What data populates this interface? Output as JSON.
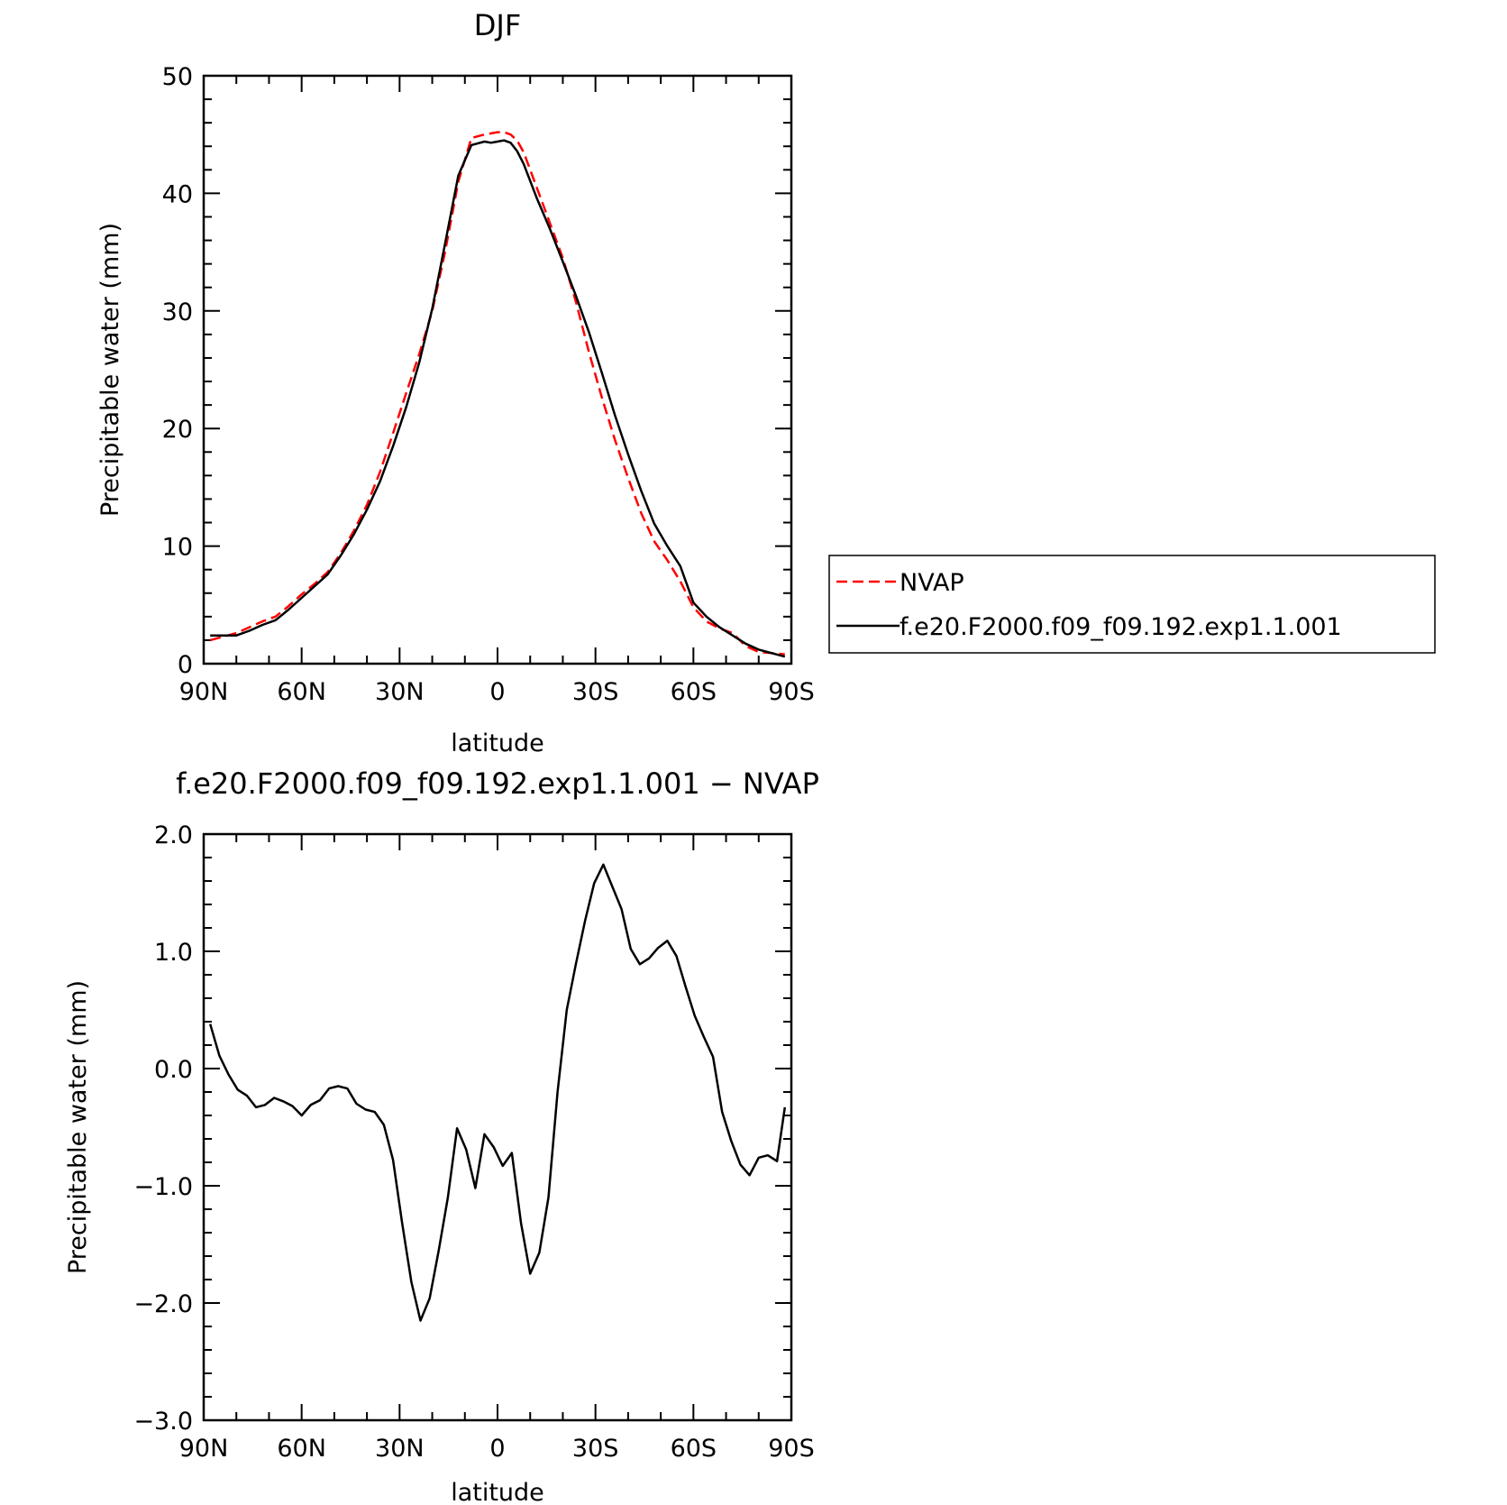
{
  "chart_data": [
    {
      "type": "line",
      "title": "DJF",
      "xlabel": "latitude",
      "ylabel": "Precipitable water (mm)",
      "xlim": [
        90,
        -90
      ],
      "ylim": [
        0,
        50
      ],
      "x_tick_values": [
        90,
        60,
        30,
        0,
        -30,
        -60,
        -90
      ],
      "x_tick_labels": [
        "90N",
        "60N",
        "30N",
        "0",
        "30S",
        "60S",
        "90S"
      ],
      "y_tick_values": [
        0,
        10,
        20,
        30,
        40,
        50
      ],
      "y_tick_labels": [
        "0",
        "10",
        "20",
        "30",
        "40",
        "50"
      ],
      "grid": false,
      "legend_position": "right",
      "x": [
        88,
        84,
        80,
        76,
        72,
        68,
        64,
        60,
        56,
        52,
        48,
        44,
        40,
        36,
        32,
        28,
        24,
        20,
        16,
        12,
        8,
        4,
        2,
        0,
        -2,
        -4,
        -6,
        -8,
        -12,
        -16,
        -20,
        -24,
        -28,
        -32,
        -36,
        -40,
        -44,
        -48,
        -52,
        -56,
        -60,
        -64,
        -68,
        -72,
        -76,
        -80,
        -84,
        -88
      ],
      "series": [
        {
          "name": "NVAP",
          "color": "#ff0000",
          "style": "dashed",
          "values": [
            2.0,
            2.3,
            2.6,
            3.1,
            3.6,
            4.0,
            4.9,
            5.9,
            6.8,
            7.8,
            9.4,
            11.3,
            13.5,
            16.3,
            19.6,
            23.0,
            26.3,
            30.0,
            35.1,
            41.0,
            44.7,
            45.0,
            45.1,
            45.2,
            45.2,
            45.0,
            44.5,
            43.5,
            40.5,
            37.5,
            34.5,
            30.8,
            26.5,
            22.6,
            19.0,
            15.8,
            12.8,
            10.4,
            8.8,
            7.0,
            4.8,
            3.6,
            3.0,
            2.6,
            1.5,
            1.0,
            0.9,
            0.8
          ]
        },
        {
          "name": "f.e20.F2000.f09_f09.192.exp1.1.001",
          "color": "#000000",
          "style": "solid",
          "values": [
            2.4,
            2.4,
            2.4,
            2.8,
            3.3,
            3.7,
            4.6,
            5.6,
            6.6,
            7.6,
            9.2,
            11.0,
            13.1,
            15.5,
            18.5,
            21.8,
            25.6,
            30.2,
            35.8,
            41.5,
            44.1,
            44.4,
            44.3,
            44.4,
            44.5,
            44.3,
            43.6,
            42.5,
            39.6,
            37.0,
            34.2,
            31.3,
            28.2,
            24.7,
            21.1,
            17.8,
            14.7,
            11.9,
            10.0,
            8.3,
            5.2,
            4.0,
            3.1,
            2.4,
            1.7,
            1.2,
            0.9,
            0.6
          ]
        }
      ]
    },
    {
      "type": "line",
      "title": "f.e20.F2000.f09_f09.192.exp1.1.001 − NVAP",
      "xlabel": "latitude",
      "ylabel": "Precipitable water (mm)",
      "xlim": [
        90,
        -90
      ],
      "ylim": [
        -3.0,
        2.0
      ],
      "x_tick_values": [
        90,
        60,
        30,
        0,
        -30,
        -60,
        -90
      ],
      "x_tick_labels": [
        "90N",
        "60N",
        "30N",
        "0",
        "30S",
        "60S",
        "90S"
      ],
      "y_tick_values": [
        2.0,
        1.0,
        0.0,
        -1.0,
        -2.0,
        -3.0
      ],
      "y_tick_labels": [
        "2.0",
        "1.0",
        "0.0",
        "−1.0",
        "−2.0",
        "−3.0"
      ],
      "grid": false,
      "x": [
        88,
        85.2,
        82.4,
        79.6,
        76.8,
        74,
        71.2,
        68.4,
        65.6,
        62.8,
        60,
        57.2,
        54.4,
        51.6,
        48.8,
        46,
        43.2,
        40.4,
        37.6,
        34.8,
        32,
        29.2,
        26.4,
        23.6,
        20.8,
        18,
        15.2,
        12.4,
        9.6,
        6.8,
        4,
        1.2,
        -1.6,
        -4.4,
        -7.2,
        -10,
        -12.8,
        -15.6,
        -18.4,
        -21.2,
        -24,
        -26.8,
        -29.6,
        -32.4,
        -35.2,
        -38,
        -40.8,
        -43.6,
        -46.4,
        -49.2,
        -52,
        -54.8,
        -57.6,
        -60.4,
        -63.2,
        -66,
        -68.8,
        -71.6,
        -74.4,
        -77.2,
        -80,
        -82.8,
        -85.6,
        -88
      ],
      "series": [
        {
          "name": "",
          "color": "#000000",
          "style": "solid",
          "values": [
            0.38,
            0.11,
            -0.05,
            -0.18,
            -0.23,
            -0.33,
            -0.31,
            -0.25,
            -0.28,
            -0.32,
            -0.4,
            -0.31,
            -0.27,
            -0.17,
            -0.15,
            -0.17,
            -0.3,
            -0.35,
            -0.37,
            -0.48,
            -0.78,
            -1.32,
            -1.82,
            -2.15,
            -1.96,
            -1.55,
            -1.1,
            -0.51,
            -0.69,
            -1.02,
            -0.56,
            -0.67,
            -0.83,
            -0.72,
            -1.32,
            -1.75,
            -1.57,
            -1.1,
            -0.2,
            0.5,
            0.89,
            1.26,
            1.58,
            1.74,
            1.55,
            1.36,
            1.02,
            0.89,
            0.94,
            1.03,
            1.09,
            0.96,
            0.7,
            0.45,
            0.27,
            0.1,
            -0.37,
            -0.62,
            -0.82,
            -0.91,
            -0.76,
            -0.74,
            -0.79,
            -0.33
          ]
        }
      ]
    }
  ],
  "legend": {
    "entries": [
      {
        "label": "NVAP",
        "color": "#ff0000",
        "style": "dashed"
      },
      {
        "label": "f.e20.F2000.f09_f09.192.exp1.1.001",
        "color": "#000000",
        "style": "solid"
      }
    ]
  }
}
